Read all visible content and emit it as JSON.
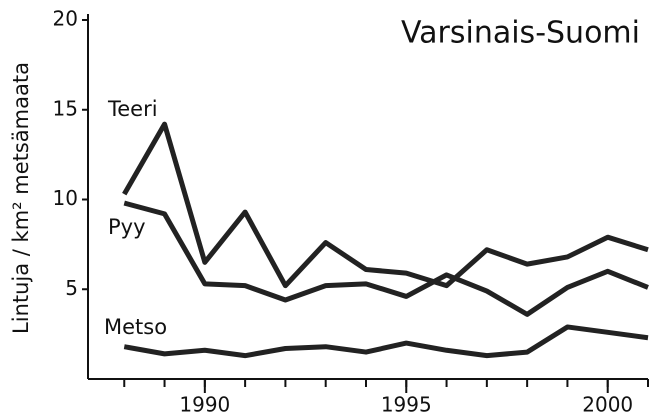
{
  "chart_data": {
    "type": "line",
    "title": "Varsinais-Suomi",
    "y_label": "Lintuja / km² metsämaata",
    "x": [
      1988,
      1989,
      1990,
      1991,
      1992,
      1993,
      1994,
      1995,
      1996,
      1997,
      1998,
      1999,
      2000,
      2001
    ],
    "series": [
      {
        "name": "Teeri",
        "color": "#222222",
        "values": [
          10.3,
          14.2,
          6.5,
          9.3,
          5.2,
          7.6,
          6.1,
          5.9,
          5.2,
          7.2,
          6.4,
          6.8,
          7.9,
          7.2
        ]
      },
      {
        "name": "Pyy",
        "color": "#222222",
        "values": [
          9.8,
          9.2,
          5.3,
          5.2,
          4.4,
          5.2,
          5.3,
          4.6,
          5.8,
          4.9,
          3.6,
          5.1,
          6.0,
          5.1
        ]
      },
      {
        "name": "Metso",
        "color": "#222222",
        "values": [
          1.8,
          1.4,
          1.6,
          1.3,
          1.7,
          1.8,
          1.5,
          2.0,
          1.6,
          1.3,
          1.5,
          2.9,
          2.6,
          2.3
        ]
      }
    ],
    "xlim": [
      1987.1,
      2001
    ],
    "xticks": [
      1990,
      1995,
      2000
    ],
    "ylim": [
      0,
      20
    ],
    "yticks": [
      5,
      10,
      15,
      20
    ],
    "grid": false
  }
}
